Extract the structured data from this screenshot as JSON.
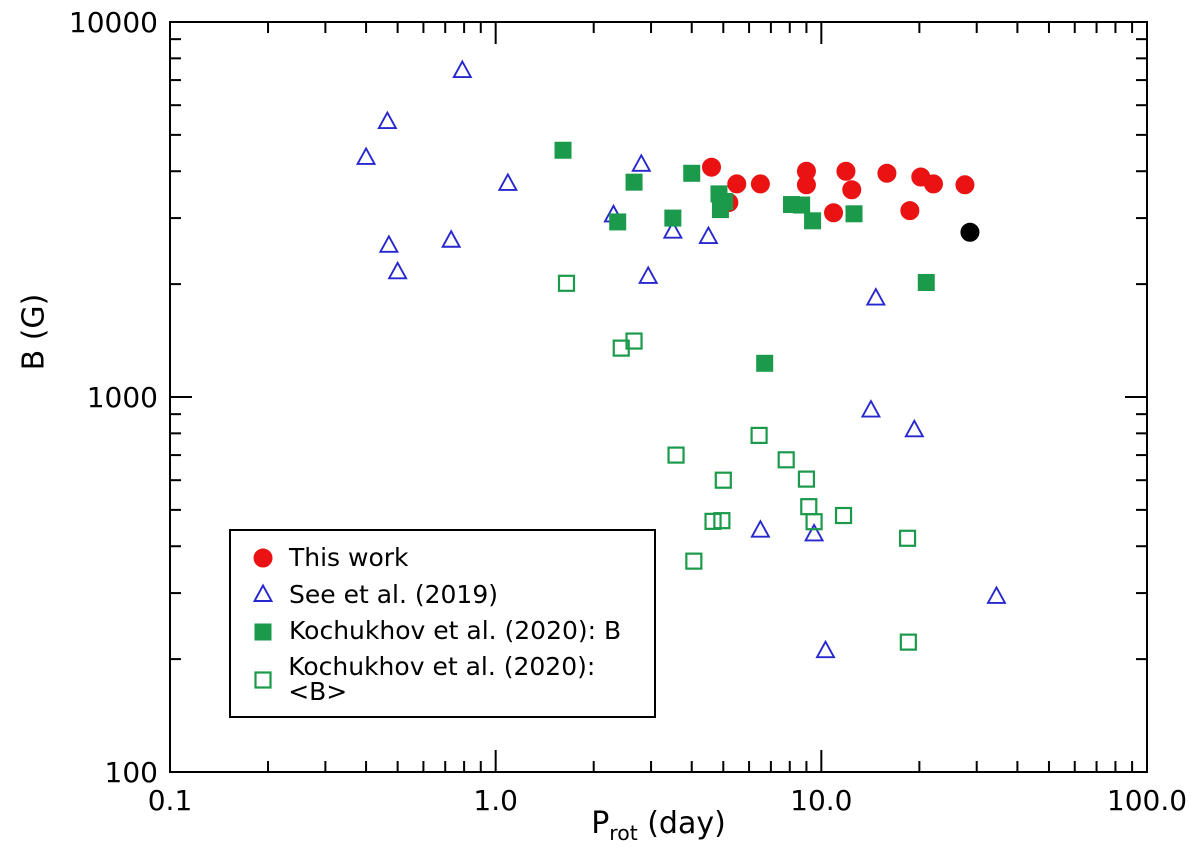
{
  "chart_data": {
    "type": "scatter",
    "title": "",
    "xlabel": {
      "pre": "P",
      "sub": "rot",
      "post": " (day)"
    },
    "ylabel": "B (G)",
    "x_scale": "log",
    "y_scale": "log",
    "xlim": [
      0.1,
      100
    ],
    "ylim": [
      100,
      10000
    ],
    "grid": false,
    "legend_position": "bottom-left",
    "x_ticks": [
      {
        "v": 0.1,
        "label": "0.1"
      },
      {
        "v": 1,
        "label": "1.0"
      },
      {
        "v": 10,
        "label": "10.0"
      },
      {
        "v": 100,
        "label": "100.0"
      }
    ],
    "y_ticks": [
      {
        "v": 100,
        "label": "100"
      },
      {
        "v": 1000,
        "label": "1000"
      },
      {
        "v": 10000,
        "label": "10000"
      }
    ],
    "series": [
      {
        "name": "This work",
        "marker": "circle",
        "style": "filled",
        "color": "#ea1212",
        "in_legend": true,
        "points": [
          [
            4.6,
            4100
          ],
          [
            5.2,
            3300
          ],
          [
            5.5,
            3700
          ],
          [
            6.5,
            3700
          ],
          [
            9.0,
            4000
          ],
          [
            9.0,
            3680
          ],
          [
            10.9,
            3100
          ],
          [
            11.9,
            4000
          ],
          [
            12.4,
            3570
          ],
          [
            15.9,
            3950
          ],
          [
            18.7,
            3140
          ],
          [
            20.2,
            3860
          ],
          [
            22.1,
            3700
          ],
          [
            27.6,
            3680
          ]
        ]
      },
      {
        "name": "See et al. (2019)",
        "marker": "triangle",
        "style": "open",
        "color": "#2727cf",
        "in_legend": true,
        "points": [
          [
            0.4,
            4340
          ],
          [
            0.465,
            5410
          ],
          [
            0.47,
            2530
          ],
          [
            0.5,
            2150
          ],
          [
            0.73,
            2610
          ],
          [
            0.79,
            7400
          ],
          [
            1.09,
            3700
          ],
          [
            2.3,
            3050
          ],
          [
            2.8,
            4160
          ],
          [
            2.94,
            2090
          ],
          [
            3.5,
            2760
          ],
          [
            4.5,
            2670
          ],
          [
            6.5,
            440
          ],
          [
            9.5,
            430
          ],
          [
            10.3,
            210
          ],
          [
            14.2,
            920
          ],
          [
            14.7,
            1830
          ],
          [
            19.3,
            815
          ],
          [
            34.5,
            293
          ]
        ]
      },
      {
        "name": "Kochukhov et al. (2020): B",
        "marker": "square",
        "style": "filled",
        "color": "#1a9a4a",
        "in_legend": true,
        "points": [
          [
            1.61,
            4550
          ],
          [
            2.37,
            2930
          ],
          [
            2.66,
            3740
          ],
          [
            3.5,
            3000
          ],
          [
            4.0,
            3950
          ],
          [
            4.85,
            3480
          ],
          [
            5.05,
            3320
          ],
          [
            4.9,
            3160
          ],
          [
            6.7,
            1230
          ],
          [
            8.1,
            3260
          ],
          [
            8.7,
            3250
          ],
          [
            9.4,
            2950
          ],
          [
            12.6,
            3080
          ],
          [
            21.0,
            2020
          ]
        ]
      },
      {
        "name": "Kochukhov et al. (2020): <B>",
        "marker": "square",
        "style": "open",
        "color": "#1a9a4a",
        "in_legend": true,
        "points": [
          [
            1.65,
            2010
          ],
          [
            2.43,
            1350
          ],
          [
            2.66,
            1410
          ],
          [
            3.58,
            700
          ],
          [
            4.06,
            365
          ],
          [
            4.65,
            466
          ],
          [
            4.95,
            468
          ],
          [
            5.0,
            600
          ],
          [
            6.44,
            790
          ],
          [
            7.8,
            680
          ],
          [
            9.0,
            604
          ],
          [
            9.15,
            510
          ],
          [
            9.5,
            465
          ],
          [
            11.7,
            483
          ],
          [
            18.4,
            420
          ],
          [
            18.5,
            222
          ]
        ]
      },
      {
        "name": "unlabeled black point",
        "marker": "circle",
        "style": "filled",
        "color": "#000000",
        "in_legend": false,
        "points": [
          [
            28.6,
            2750
          ]
        ]
      }
    ]
  }
}
